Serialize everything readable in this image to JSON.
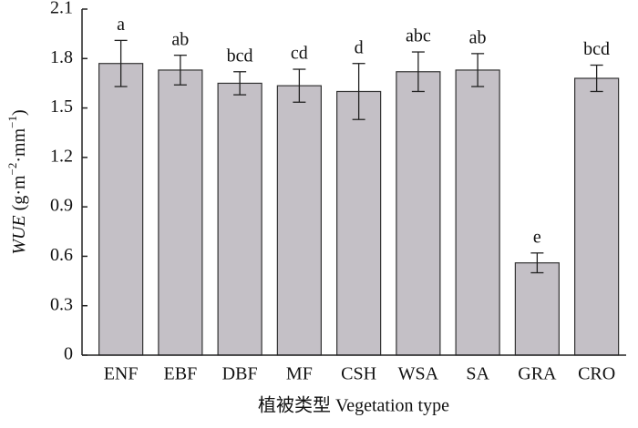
{
  "chart_data": {
    "type": "bar",
    "categories": [
      "ENF",
      "EBF",
      "DBF",
      "MF",
      "CSH",
      "WSA",
      "SA",
      "GRA",
      "CRO"
    ],
    "values": [
      1.77,
      1.73,
      1.65,
      1.635,
      1.6,
      1.72,
      1.73,
      0.56,
      1.68
    ],
    "errors": [
      0.14,
      0.09,
      0.07,
      0.1,
      0.17,
      0.12,
      0.1,
      0.06,
      0.08
    ],
    "annotations": [
      "a",
      "ab",
      "bcd",
      "cd",
      "d",
      "abc",
      "ab",
      "e",
      "bcd"
    ],
    "color": "#c4c0c6",
    "ylim": [
      0,
      2.1
    ],
    "yticks": [
      0,
      0.3,
      0.6,
      0.9,
      1.2,
      1.5,
      1.8,
      2.1
    ],
    "grid": false,
    "xlabel": "植被类型 Vegetation type",
    "ylabel": [
      "WUE",
      " (g·m",
      "−2",
      "·mm",
      "−1",
      ")"
    ]
  }
}
